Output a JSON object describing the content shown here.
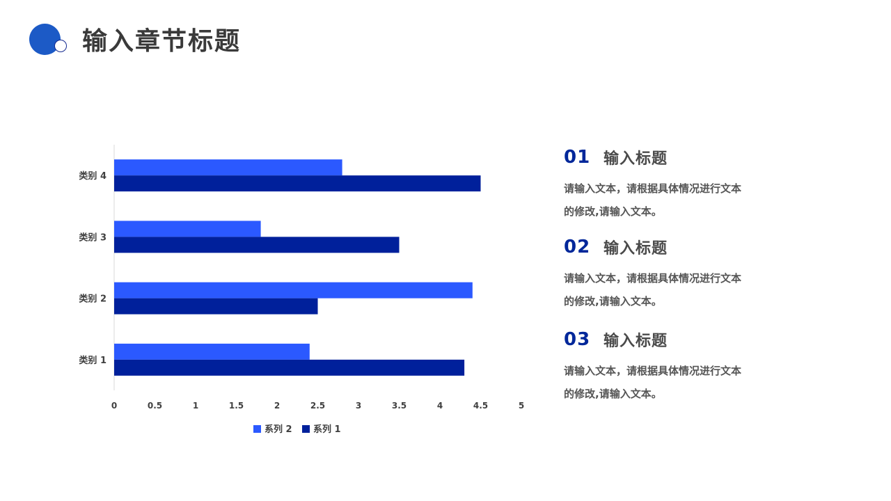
{
  "header": {
    "title": "输入章节标题"
  },
  "chart_data": {
    "type": "bar",
    "orientation": "horizontal",
    "categories": [
      "类别 1",
      "类别 2",
      "类别 3",
      "类别 4"
    ],
    "series": [
      {
        "name": "系列 2",
        "values": [
          2.4,
          4.4,
          1.8,
          2.8
        ],
        "color": "#2b59ff"
      },
      {
        "name": "系列 1",
        "values": [
          4.3,
          2.5,
          3.5,
          4.5
        ],
        "color": "#00209b"
      }
    ],
    "x_ticks": [
      "0",
      "0.5",
      "1",
      "1.5",
      "2",
      "2.5",
      "3",
      "3.5",
      "4",
      "4.5",
      "5"
    ],
    "xlim": [
      0,
      5
    ],
    "grid": false,
    "legend_position": "bottom"
  },
  "items": [
    {
      "num": "01",
      "title": "输入标题",
      "body": "请输入文本，请根据具体情况进行文本的修改,请输入文本。"
    },
    {
      "num": "02",
      "title": "输入标题",
      "body": "请输入文本，请根据具体情况进行文本的修改,请输入文本。"
    },
    {
      "num": "03",
      "title": "输入标题",
      "body": "请输入文本，请根据具体情况进行文本的修改,请输入文本。"
    }
  ],
  "colors": {
    "accent": "#1c5ac6",
    "dark": "#00209b",
    "light": "#2b59ff"
  }
}
